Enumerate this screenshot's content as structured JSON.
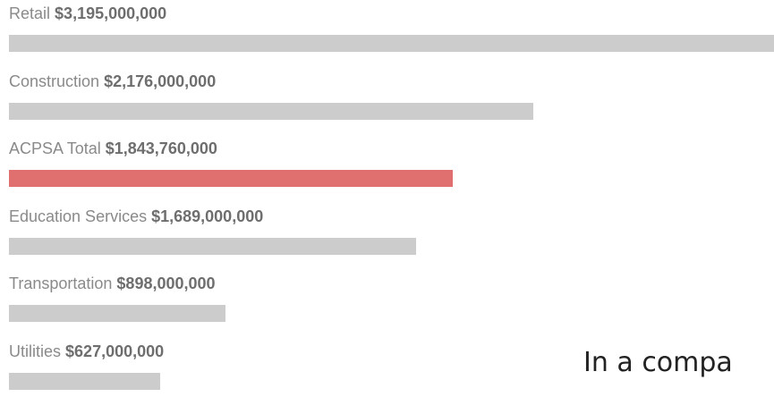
{
  "chart_data": {
    "type": "bar",
    "orientation": "horizontal",
    "categories": [
      "Retail",
      "Construction",
      "ACPSA Total",
      "Education Services",
      "Transportation",
      "Utilities"
    ],
    "value_labels": [
      "$3,195,000,000",
      "$2,176,000,000",
      "$1,843,760,000",
      "$1,689,000,000",
      "$898,000,000",
      "$627,000,000"
    ],
    "values": [
      3195000000,
      2176000000,
      1843760000,
      1689000000,
      898000000,
      627000000
    ],
    "highlight_category": "ACPSA Total",
    "xlim": [
      0,
      3195000000
    ],
    "grid": false,
    "bar_color": "#cccccc",
    "highlight_color": "#e07070",
    "title": "",
    "xlabel": "",
    "ylabel": ""
  },
  "caption": "In a compa"
}
